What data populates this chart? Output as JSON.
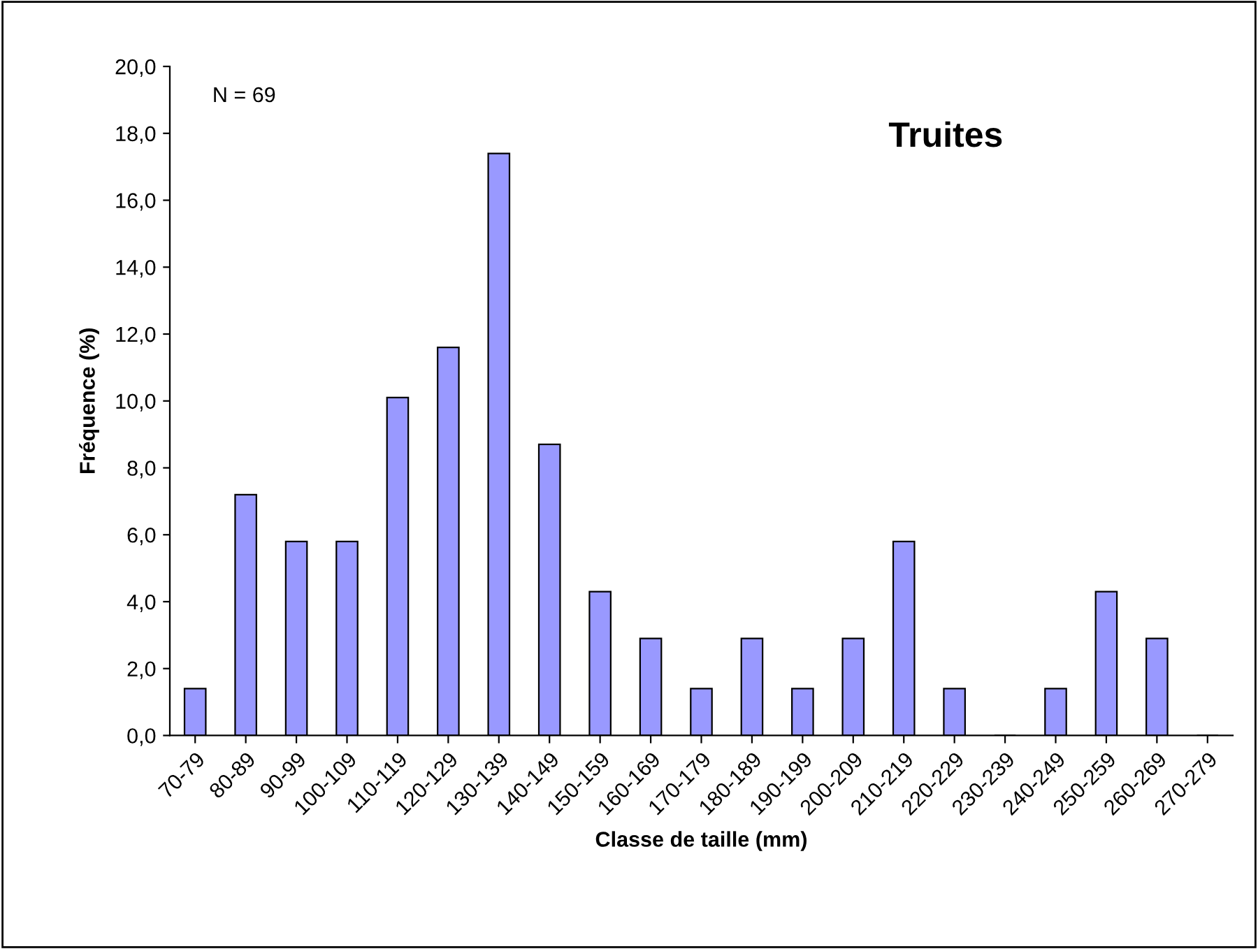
{
  "chart_data": {
    "type": "bar",
    "title": "Truites",
    "xlabel": "Classe de taille (mm)",
    "ylabel": "Fréquence (%)",
    "annotations": [
      "N = 69"
    ],
    "categories": [
      "70-79",
      "80-89",
      "90-99",
      "100-109",
      "110-119",
      "120-129",
      "130-139",
      "140-149",
      "150-159",
      "160-169",
      "170-179",
      "180-189",
      "190-199",
      "200-209",
      "210-219",
      "220-229",
      "230-239",
      "240-249",
      "250-259",
      "260-269",
      "270-279"
    ],
    "values": [
      1.4,
      7.2,
      5.8,
      5.8,
      10.1,
      11.6,
      17.4,
      8.7,
      4.3,
      2.9,
      1.4,
      2.9,
      1.4,
      2.9,
      5.8,
      1.4,
      0,
      1.4,
      4.3,
      2.9,
      0
    ],
    "color": "#9999ff",
    "ylim": [
      0,
      20
    ],
    "yticks": [
      {
        "value": 0,
        "label": "0,0"
      },
      {
        "value": 2,
        "label": "2,0"
      },
      {
        "value": 4,
        "label": "4,0"
      },
      {
        "value": 6,
        "label": "6,0"
      },
      {
        "value": 8,
        "label": "8,0"
      },
      {
        "value": 10,
        "label": "10,0"
      },
      {
        "value": 12,
        "label": "12,0"
      },
      {
        "value": 14,
        "label": "14,0"
      },
      {
        "value": 16,
        "label": "16,0"
      },
      {
        "value": 18,
        "label": "18,0"
      },
      {
        "value": 20,
        "label": "20,0"
      }
    ],
    "grid": false,
    "legend": false
  }
}
